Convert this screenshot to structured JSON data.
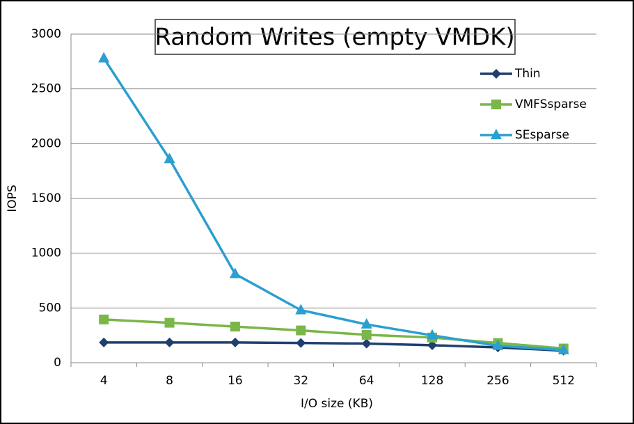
{
  "chart_data": {
    "type": "line",
    "title": "Random Writes (empty VMDK)",
    "x_label": "I/O size (KB)",
    "y_label": "IOPS",
    "categories": [
      "4",
      "8",
      "16",
      "32",
      "64",
      "128",
      "256",
      "512"
    ],
    "series": [
      {
        "name": "Thin",
        "color": "#1f3f6e",
        "marker": "diamond",
        "values": [
          185,
          185,
          185,
          180,
          175,
          160,
          140,
          110
        ]
      },
      {
        "name": "VMFSsparse",
        "color": "#7ab648",
        "marker": "square",
        "values": [
          395,
          365,
          330,
          295,
          255,
          230,
          180,
          130
        ]
      },
      {
        "name": "SEsparse",
        "color": "#2b9fd0",
        "marker": "triangle",
        "values": [
          2780,
          1860,
          810,
          480,
          350,
          250,
          155,
          115
        ]
      }
    ],
    "ylim": [
      0,
      3000
    ],
    "yticks": [
      0,
      500,
      1000,
      1500,
      2000,
      2500,
      3000
    ],
    "grid": true,
    "legend": "upper right"
  }
}
